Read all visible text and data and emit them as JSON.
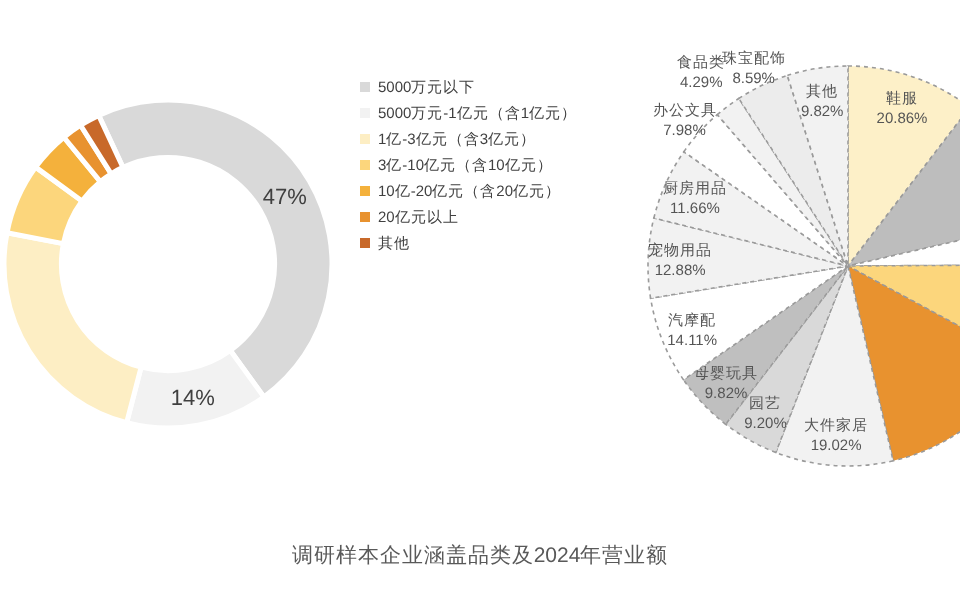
{
  "chart_data": [
    {
      "type": "donut",
      "categories": [
        "5000万元以下",
        "5000万元-1亿元（含1亿元）",
        "1亿-3亿元（含3亿元）",
        "3亿-10亿元（含10亿元）",
        "10亿-20亿元（含20亿元）",
        "20亿元以上",
        "其他"
      ],
      "values": [
        47,
        14,
        24,
        7,
        4,
        2,
        2
      ],
      "colors": [
        "#d9d9d9",
        "#f2f2f2",
        "#fdeec4",
        "#fcd67c",
        "#f4b13c",
        "#e8922f",
        "#c8692a"
      ],
      "value_labels": [
        "47%",
        "14%",
        null,
        null,
        null,
        null,
        null
      ],
      "legend": "right",
      "annotations": [
        "调研样本企业涵盖品类及2024年营业额"
      ]
    },
    {
      "type": "pie",
      "categories": [
        "鞋服",
        null,
        null,
        null,
        null,
        "大件家居",
        "园艺",
        "母婴玩具",
        "汽摩配",
        "宠物用品",
        "厨房用品",
        "办公文具",
        "食品类",
        "珠宝配饰",
        "其他"
      ],
      "values": [
        20.86,
        22,
        7,
        16,
        27,
        19.02,
        9.2,
        9.82,
        14.11,
        12.88,
        11.66,
        7.98,
        4.29,
        8.59,
        9.82
      ],
      "colors": [
        "#fdf0c8",
        "#bdbdbd",
        "#ffffff",
        "#fcd67c",
        "#e8922f",
        "#f2f2f2",
        "#d9d9d9",
        "#bfbfbf",
        "#ffffff",
        "#f2f2f2",
        "#f2f2f2",
        "#ffffff",
        "#f2f2f2",
        "#ececec",
        "#f2f2f2"
      ],
      "value_labels": [
        "20.86%",
        null,
        null,
        null,
        null,
        "19.02%",
        "9.20%",
        "9.82%",
        "14.11%",
        "12.88%",
        "11.66%",
        "7.98%",
        "4.29%",
        "8.59%",
        "9.82%"
      ]
    }
  ]
}
